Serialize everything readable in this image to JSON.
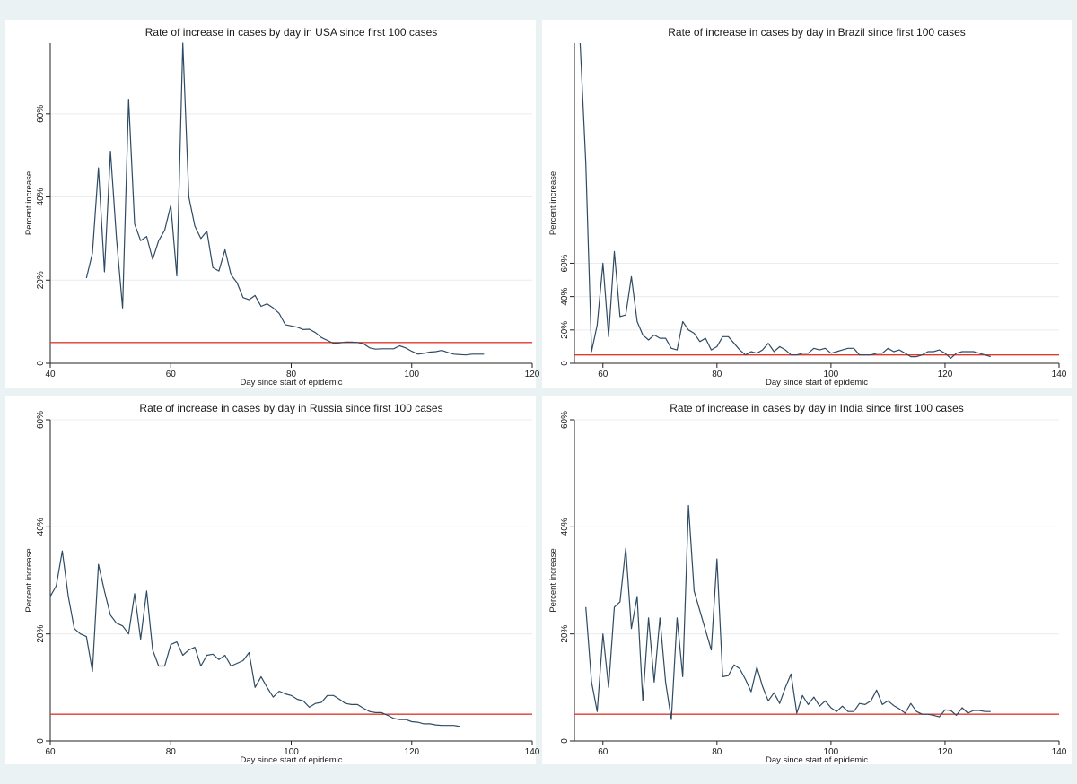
{
  "reference_line_color": "#e03a2e",
  "series_color": "#2f4b63",
  "chart_data": [
    {
      "type": "line",
      "title": "Rate of increase in cases by day in USA since first 100 cases",
      "xlabel": "Day since start of epidemic",
      "ylabel": "Percent increase",
      "xlim": [
        40,
        120
      ],
      "ylim": [
        0,
        0.77
      ],
      "xticks": [
        40,
        60,
        80,
        100,
        120
      ],
      "yticks": [
        0,
        0.2,
        0.4,
        0.6
      ],
      "ytick_labels": [
        "0",
        "20%",
        "40%",
        "60%"
      ],
      "grid": true,
      "reference_line": 0.05,
      "x": [
        46,
        47,
        48,
        49,
        50,
        51,
        52,
        53,
        54,
        55,
        56,
        57,
        58,
        59,
        60,
        61,
        62,
        63,
        64,
        65,
        66,
        67,
        68,
        69,
        70,
        71,
        72,
        73,
        74,
        75,
        76,
        77,
        78,
        79,
        80,
        81,
        82,
        83,
        84,
        85,
        86,
        87,
        88,
        89,
        90,
        91,
        92,
        93,
        94,
        95,
        96,
        97,
        98,
        99,
        100,
        101,
        102,
        103,
        104,
        105,
        106,
        107,
        108,
        109,
        110,
        111,
        112
      ],
      "y": [
        0.205,
        0.265,
        0.47,
        0.22,
        0.51,
        0.3,
        0.133,
        0.635,
        0.335,
        0.295,
        0.305,
        0.25,
        0.295,
        0.32,
        0.38,
        0.21,
        0.77,
        0.4,
        0.33,
        0.3,
        0.318,
        0.23,
        0.222,
        0.273,
        0.213,
        0.194,
        0.158,
        0.153,
        0.163,
        0.137,
        0.143,
        0.133,
        0.12,
        0.093,
        0.09,
        0.087,
        0.081,
        0.082,
        0.074,
        0.062,
        0.055,
        0.048,
        0.049,
        0.051,
        0.051,
        0.05,
        0.047,
        0.037,
        0.034,
        0.035,
        0.035,
        0.035,
        0.042,
        0.037,
        0.029,
        0.022,
        0.024,
        0.027,
        0.028,
        0.031,
        0.026,
        0.022,
        0.021,
        0.02,
        0.022,
        0.022,
        0.022
      ]
    },
    {
      "type": "line",
      "title": "Rate of increase in cases by day in Brazil since first 100 cases",
      "xlabel": "Day since start of epidemic",
      "ylabel": "Percent increase",
      "xlim": [
        55,
        140
      ],
      "ylim": [
        0,
        1.92
      ],
      "xticks": [
        60,
        80,
        100,
        120,
        140
      ],
      "yticks": [
        0,
        0.2,
        0.4,
        0.6
      ],
      "ytick_labels": [
        "0",
        "20%",
        "40%",
        "60%"
      ],
      "grid": true,
      "reference_line": 0.05,
      "x": [
        56,
        57,
        58,
        59,
        60,
        61,
        62,
        63,
        64,
        65,
        66,
        67,
        68,
        69,
        70,
        71,
        72,
        73,
        74,
        75,
        76,
        77,
        78,
        79,
        80,
        81,
        82,
        83,
        84,
        85,
        86,
        87,
        88,
        89,
        90,
        91,
        92,
        93,
        94,
        95,
        96,
        97,
        98,
        99,
        100,
        101,
        102,
        103,
        104,
        105,
        106,
        107,
        108,
        109,
        110,
        111,
        112,
        113,
        114,
        115,
        116,
        117,
        118,
        119,
        120,
        121,
        122,
        123,
        124,
        125,
        126,
        127,
        128
      ],
      "y": [
        1.92,
        1.2,
        0.07,
        0.23,
        0.6,
        0.16,
        0.67,
        0.28,
        0.29,
        0.52,
        0.25,
        0.17,
        0.14,
        0.17,
        0.15,
        0.15,
        0.09,
        0.08,
        0.25,
        0.2,
        0.18,
        0.13,
        0.15,
        0.08,
        0.1,
        0.16,
        0.16,
        0.12,
        0.08,
        0.05,
        0.07,
        0.06,
        0.08,
        0.12,
        0.07,
        0.1,
        0.08,
        0.05,
        0.05,
        0.06,
        0.06,
        0.09,
        0.08,
        0.09,
        0.06,
        0.07,
        0.08,
        0.09,
        0.09,
        0.05,
        0.05,
        0.05,
        0.06,
        0.06,
        0.09,
        0.07,
        0.08,
        0.06,
        0.04,
        0.04,
        0.05,
        0.07,
        0.07,
        0.08,
        0.06,
        0.03,
        0.06,
        0.07,
        0.07,
        0.07,
        0.06,
        0.05,
        0.04
      ]
    },
    {
      "type": "line",
      "title": "Rate of increase in cases by day in Russia since first 100 cases",
      "xlabel": "Day since start of epidemic",
      "ylabel": "Percent increase",
      "xlim": [
        60,
        140
      ],
      "ylim": [
        0,
        0.6
      ],
      "xticks": [
        60,
        80,
        100,
        120,
        140
      ],
      "yticks": [
        0,
        0.2,
        0.4,
        0.6
      ],
      "ytick_labels": [
        "0",
        "20%",
        "40%",
        "60%"
      ],
      "grid": true,
      "reference_line": 0.05,
      "x": [
        60,
        61,
        62,
        63,
        64,
        65,
        66,
        67,
        68,
        69,
        70,
        71,
        72,
        73,
        74,
        75,
        76,
        77,
        78,
        79,
        80,
        81,
        82,
        83,
        84,
        85,
        86,
        87,
        88,
        89,
        90,
        91,
        92,
        93,
        94,
        95,
        96,
        97,
        98,
        99,
        100,
        101,
        102,
        103,
        104,
        105,
        106,
        107,
        108,
        109,
        110,
        111,
        112,
        113,
        114,
        115,
        116,
        117,
        118,
        119,
        120,
        121,
        122,
        123,
        124,
        125,
        126,
        127,
        128
      ],
      "y": [
        0.27,
        0.29,
        0.355,
        0.27,
        0.21,
        0.2,
        0.195,
        0.13,
        0.33,
        0.28,
        0.235,
        0.22,
        0.215,
        0.2,
        0.275,
        0.19,
        0.28,
        0.17,
        0.14,
        0.14,
        0.18,
        0.185,
        0.16,
        0.17,
        0.175,
        0.14,
        0.16,
        0.162,
        0.152,
        0.16,
        0.14,
        0.145,
        0.15,
        0.165,
        0.1,
        0.12,
        0.1,
        0.082,
        0.093,
        0.088,
        0.085,
        0.078,
        0.075,
        0.063,
        0.07,
        0.072,
        0.085,
        0.085,
        0.078,
        0.07,
        0.068,
        0.068,
        0.061,
        0.055,
        0.053,
        0.053,
        0.048,
        0.042,
        0.04,
        0.04,
        0.036,
        0.035,
        0.032,
        0.032,
        0.03,
        0.029,
        0.029,
        0.029,
        0.027
      ]
    },
    {
      "type": "line",
      "title": "Rate of increase in cases by day in India since first 100 cases",
      "xlabel": "Day since start of epidemic",
      "ylabel": "Percent increase",
      "xlim": [
        55,
        140
      ],
      "ylim": [
        0,
        0.6
      ],
      "xticks": [
        60,
        80,
        100,
        120,
        140
      ],
      "yticks": [
        0,
        0.2,
        0.4,
        0.6
      ],
      "ytick_labels": [
        "0",
        "20%",
        "40%",
        "60%"
      ],
      "grid": true,
      "reference_line": 0.05,
      "x": [
        57,
        58,
        59,
        60,
        61,
        62,
        63,
        64,
        65,
        66,
        67,
        68,
        69,
        70,
        71,
        72,
        73,
        74,
        75,
        76,
        79,
        80,
        81,
        82,
        83,
        84,
        85,
        86,
        87,
        88,
        89,
        90,
        91,
        92,
        93,
        94,
        95,
        96,
        97,
        98,
        99,
        100,
        101,
        102,
        103,
        104,
        105,
        106,
        107,
        108,
        109,
        110,
        111,
        112,
        113,
        114,
        115,
        116,
        117,
        118,
        119,
        120,
        121,
        122,
        123,
        124,
        125,
        126,
        127,
        128
      ],
      "y": [
        0.25,
        0.11,
        0.055,
        0.2,
        0.1,
        0.25,
        0.26,
        0.36,
        0.21,
        0.27,
        0.075,
        0.23,
        0.11,
        0.23,
        0.11,
        0.04,
        0.23,
        0.12,
        0.44,
        0.28,
        0.17,
        0.34,
        0.12,
        0.122,
        0.142,
        0.135,
        0.115,
        0.092,
        0.138,
        0.102,
        0.075,
        0.09,
        0.07,
        0.1,
        0.125,
        0.052,
        0.085,
        0.068,
        0.082,
        0.065,
        0.075,
        0.062,
        0.055,
        0.065,
        0.055,
        0.055,
        0.07,
        0.068,
        0.075,
        0.095,
        0.068,
        0.075,
        0.066,
        0.06,
        0.052,
        0.07,
        0.055,
        0.05,
        0.05,
        0.048,
        0.045,
        0.058,
        0.057,
        0.048,
        0.062,
        0.052,
        0.057,
        0.057,
        0.055,
        0.055
      ]
    }
  ]
}
